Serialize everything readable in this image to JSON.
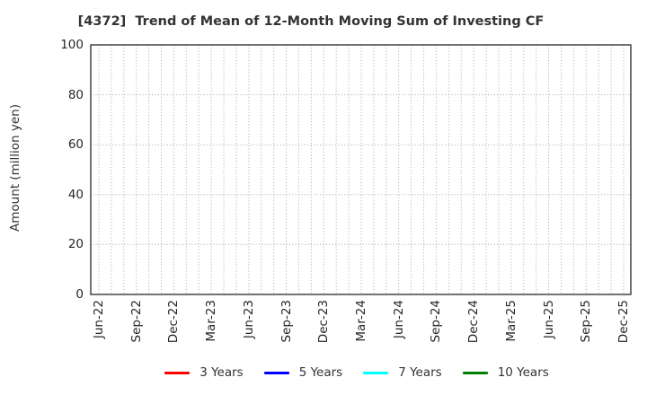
{
  "chart_data": {
    "type": "line",
    "title": "[4372]  Trend of Mean of 12-Month Moving Sum of Investing CF",
    "ylabel": "Amount (million yen)",
    "xlabel": "",
    "ylim": [
      0,
      100
    ],
    "yticks": [
      0,
      20,
      40,
      60,
      80,
      100
    ],
    "x_tick_labels": [
      "Jun-22",
      "Sep-22",
      "Dec-22",
      "Mar-23",
      "Jun-23",
      "Sep-23",
      "Dec-23",
      "Mar-24",
      "Jun-24",
      "Sep-24",
      "Dec-24",
      "Mar-25",
      "Jun-25",
      "Sep-25",
      "Dec-25"
    ],
    "x_minor_per_major": 3,
    "grid": "dotted",
    "grid_color": "#a8a8a8",
    "axis_color": "#262626",
    "legend_position": "bottom",
    "series": [
      {
        "name": "3 Years",
        "color": "#ff0000",
        "values": []
      },
      {
        "name": "5 Years",
        "color": "#0000ff",
        "values": []
      },
      {
        "name": "7 Years",
        "color": "#00ffff",
        "values": []
      },
      {
        "name": "10 Years",
        "color": "#008000",
        "values": []
      }
    ]
  }
}
